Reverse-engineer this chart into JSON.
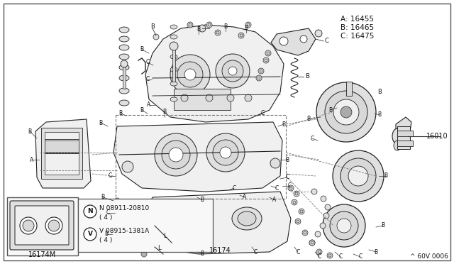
{
  "background_color": "#ffffff",
  "border_color": "#888888",
  "legend_lines": [
    "A: 16455",
    "B: 16465",
    "C: 16475"
  ],
  "part_numbers_text": [
    "16010",
    "16174",
    "16174M"
  ],
  "bolt_text_1": "N 08911-20810",
  "bolt_text_1b": "( 4 )",
  "bolt_text_2": "V 08915-1381A",
  "bolt_text_2b": "( 4 )",
  "diagram_code": "^ 60V 0006",
  "text_color": "#111111",
  "line_color": "#333333",
  "dashed_color": "#777777",
  "part_fill": "#f0f0f0",
  "part_fill2": "#e0e0e0",
  "part_stroke": "#222222",
  "gray_light": "#d8d8d8",
  "gray_mid": "#aaaaaa",
  "gray_dark": "#555555"
}
